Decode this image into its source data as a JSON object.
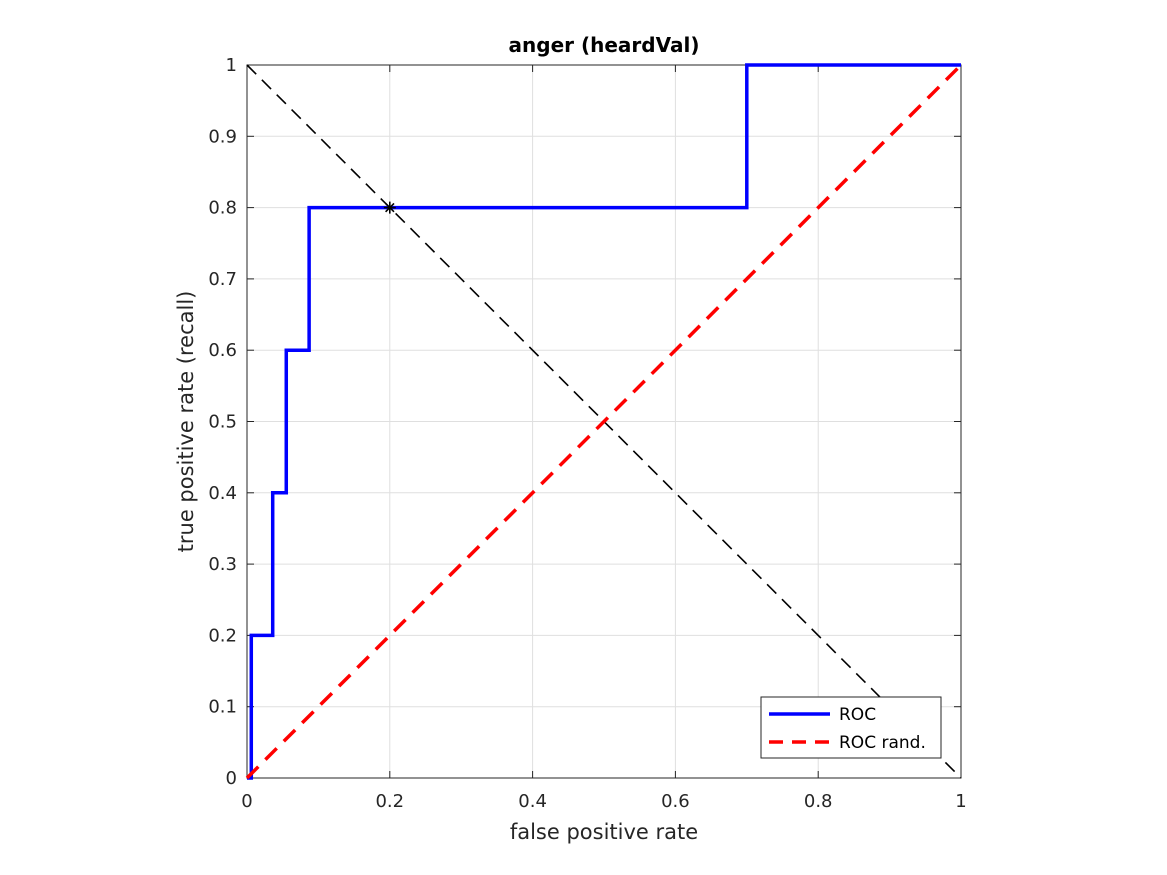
{
  "chart_data": {
    "type": "line",
    "title": "anger (heardVal)",
    "xlabel": "false positive rate",
    "ylabel": "true positive rate (recall)",
    "xlim": [
      0,
      1
    ],
    "ylim": [
      0,
      1
    ],
    "xticks": [
      0,
      0.2,
      0.4,
      0.6,
      0.8,
      1
    ],
    "xtick_labels": [
      "0",
      "0.2",
      "0.4",
      "0.6",
      "0.8",
      "1"
    ],
    "yticks": [
      0,
      0.1,
      0.2,
      0.3,
      0.4,
      0.5,
      0.6,
      0.7,
      0.8,
      0.9,
      1
    ],
    "ytick_labels": [
      "0",
      "0.1",
      "0.2",
      "0.3",
      "0.4",
      "0.5",
      "0.6",
      "0.7",
      "0.8",
      "0.9",
      "1"
    ],
    "grid": true,
    "legend_position": "bottom-right",
    "series": [
      {
        "name": "ROC",
        "color": "#0000ff",
        "style": "solid",
        "x": [
          0,
          0.006,
          0.006,
          0.036,
          0.036,
          0.055,
          0.055,
          0.087,
          0.087,
          0.7,
          0.7,
          1
        ],
        "y": [
          0,
          0,
          0.2,
          0.2,
          0.4,
          0.4,
          0.6,
          0.6,
          0.8,
          0.8,
          1,
          1
        ]
      },
      {
        "name": "ROC rand.",
        "color": "#ff0000",
        "style": "dashed",
        "x": [
          0,
          1
        ],
        "y": [
          0,
          1
        ]
      }
    ],
    "reference_line": {
      "color": "#000000",
      "style": "dashed",
      "x": [
        0,
        1
      ],
      "y": [
        1,
        0
      ]
    },
    "marker": {
      "x": 0.2,
      "y": 0.8,
      "symbol": "asterisk",
      "color": "#000000"
    }
  }
}
